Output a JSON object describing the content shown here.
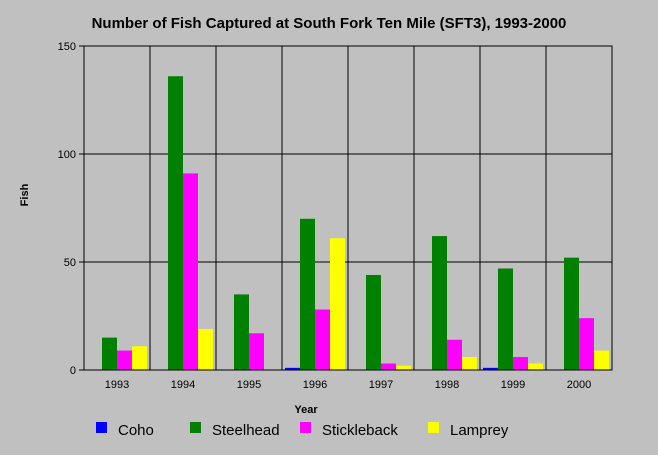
{
  "chart_data": {
    "type": "bar",
    "title": "Number of Fish Captured at South Fork Ten Mile (SFT3), 1993-2000",
    "xlabel": "Year",
    "ylabel": "Fish",
    "categories": [
      "1993",
      "1994",
      "1995",
      "1996",
      "1997",
      "1998",
      "1999",
      "2000"
    ],
    "ylim": [
      0,
      150
    ],
    "yticks": [
      0,
      50,
      100,
      150
    ],
    "grid": true,
    "legend_position": "bottom",
    "series": [
      {
        "name": "Coho",
        "color": "#0000ff",
        "values": [
          0,
          0,
          0,
          1,
          0,
          0,
          1,
          0
        ]
      },
      {
        "name": "Steelhead",
        "color": "#008000",
        "values": [
          15,
          136,
          35,
          70,
          44,
          62,
          47,
          52
        ]
      },
      {
        "name": "Stickleback",
        "color": "#ff00ff",
        "values": [
          9,
          91,
          17,
          28,
          3,
          14,
          6,
          24
        ]
      },
      {
        "name": "Lamprey",
        "color": "#ffff00",
        "values": [
          11,
          19,
          0,
          61,
          2,
          6,
          3,
          9
        ]
      }
    ]
  }
}
